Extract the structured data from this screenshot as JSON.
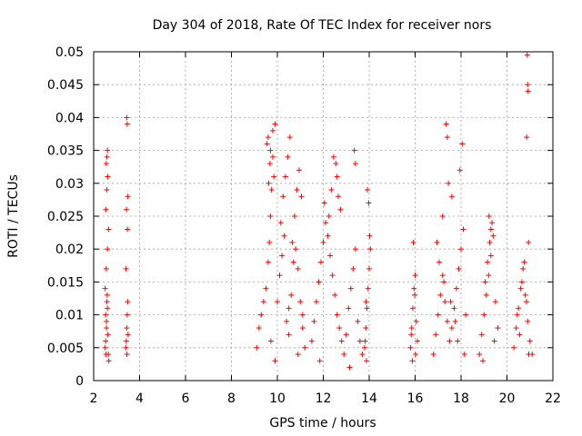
{
  "chart_data": {
    "type": "scatter",
    "title": "Day 304 of 2018, Rate Of TEC Index for receiver nors",
    "xlabel": "GPS time / hours",
    "ylabel": "ROTI / TECUs",
    "xlim": [
      2,
      22
    ],
    "ylim": [
      0,
      0.05
    ],
    "grid": true,
    "marker": "plus",
    "color": "#ff0000",
    "x_ticks": [
      2,
      4,
      6,
      8,
      10,
      12,
      14,
      16,
      18,
      20,
      22
    ],
    "x_tick_labels": [
      "2",
      "4",
      "6",
      "8",
      "10",
      "12",
      "14",
      "16",
      "18",
      "20",
      "22"
    ],
    "y_ticks": [
      0,
      0.005,
      0.01,
      0.015,
      0.02,
      0.025,
      0.03,
      0.035,
      0.04,
      0.045,
      0.05
    ],
    "y_tick_labels": [
      "0",
      "0.005",
      "0.01",
      "0.015",
      "0.02",
      "0.025",
      "0.03",
      "0.035",
      "0.04",
      "0.045",
      "0.05"
    ],
    "series": [
      {
        "name": "ROTI",
        "x": [
          2.5,
          2.52,
          2.54,
          2.56,
          2.58,
          2.6,
          2.62,
          2.64,
          2.66,
          2.5,
          2.55,
          2.6,
          2.65,
          2.53,
          2.57,
          2.61,
          2.55,
          2.58,
          2.6,
          2.52,
          2.56,
          2.59,
          3.4,
          3.42,
          3.44,
          3.46,
          3.48,
          3.5,
          3.45,
          3.41,
          3.47,
          3.43,
          3.49,
          3.44,
          3.46,
          9.1,
          9.2,
          9.3,
          9.4,
          9.5,
          9.6,
          9.65,
          9.7,
          9.75,
          9.8,
          9.85,
          9.9,
          10.0,
          10.1,
          10.2,
          10.3,
          10.4,
          10.5,
          10.6,
          10.7,
          10.8,
          10.9,
          11.0,
          11.1,
          11.2,
          9.55,
          9.6,
          9.7,
          9.8,
          9.62,
          9.68,
          10.15,
          10.25,
          10.35,
          10.45,
          10.55,
          10.65,
          10.75,
          10.85,
          10.95,
          11.05,
          9.72,
          9.9,
          10.9,
          11.1,
          10.5,
          11.5,
          11.6,
          11.7,
          11.8,
          11.9,
          12.0,
          12.1,
          12.2,
          12.3,
          12.4,
          12.5,
          12.6,
          12.7,
          12.8,
          12.9,
          13.0,
          13.1,
          13.2,
          13.3,
          13.4,
          13.5,
          13.6,
          13.7,
          12.45,
          12.55,
          12.6,
          13.35,
          13.4,
          12.05,
          12.25,
          12.65,
          11.85,
          13.15,
          12.75,
          12.35,
          13.8,
          13.85,
          13.9,
          13.95,
          14.0,
          14.05,
          13.88,
          13.92,
          13.98,
          14.02,
          13.86,
          13.82,
          15.8,
          15.85,
          15.9,
          15.95,
          16.0,
          16.05,
          16.1,
          15.88,
          15.92,
          15.98,
          16.02,
          15.83,
          16.8,
          16.9,
          17.0,
          17.1,
          17.2,
          17.3,
          17.4,
          17.5,
          17.6,
          17.7,
          17.8,
          17.9,
          18.0,
          18.1,
          18.2,
          17.35,
          17.4,
          17.45,
          17.2,
          17.6,
          18.05,
          17.95,
          17.05,
          17.25,
          17.55,
          17.75,
          17.85,
          18.15,
          16.95,
          18.8,
          18.9,
          19.0,
          19.1,
          19.2,
          19.3,
          19.4,
          19.5,
          19.6,
          19.05,
          19.15,
          19.25,
          19.35,
          19.45,
          18.95,
          19.22,
          19.3,
          20.3,
          20.4,
          20.5,
          20.6,
          20.7,
          20.8,
          20.9,
          21.0,
          21.1,
          20.45,
          20.55,
          20.65,
          20.75,
          20.85,
          20.95,
          20.88,
          20.9,
          20.92,
          20.86,
          20.94
        ],
        "y": [
          0.005,
          0.006,
          0.004,
          0.008,
          0.012,
          0.011,
          0.007,
          0.004,
          0.003,
          0.014,
          0.017,
          0.02,
          0.023,
          0.026,
          0.029,
          0.031,
          0.033,
          0.034,
          0.035,
          0.01,
          0.009,
          0.013,
          0.005,
          0.006,
          0.008,
          0.01,
          0.012,
          0.007,
          0.004,
          0.017,
          0.023,
          0.026,
          0.028,
          0.04,
          0.039,
          0.005,
          0.008,
          0.01,
          0.012,
          0.014,
          0.018,
          0.021,
          0.025,
          0.029,
          0.034,
          0.031,
          0.039,
          0.012,
          0.016,
          0.019,
          0.022,
          0.009,
          0.007,
          0.013,
          0.018,
          0.02,
          0.017,
          0.012,
          0.008,
          0.005,
          0.036,
          0.037,
          0.035,
          0.038,
          0.03,
          0.033,
          0.024,
          0.028,
          0.031,
          0.034,
          0.037,
          0.021,
          0.025,
          0.029,
          0.032,
          0.028,
          0.006,
          0.003,
          0.004,
          0.01,
          0.011,
          0.006,
          0.009,
          0.012,
          0.015,
          0.018,
          0.021,
          0.024,
          0.022,
          0.019,
          0.016,
          0.013,
          0.01,
          0.008,
          0.006,
          0.004,
          0.007,
          0.011,
          0.014,
          0.017,
          0.02,
          0.009,
          0.006,
          0.004,
          0.034,
          0.033,
          0.031,
          0.035,
          0.033,
          0.027,
          0.025,
          0.028,
          0.003,
          0.002,
          0.026,
          0.029,
          0.005,
          0.008,
          0.011,
          0.014,
          0.017,
          0.02,
          0.003,
          0.029,
          0.027,
          0.022,
          0.012,
          0.006,
          0.005,
          0.008,
          0.011,
          0.014,
          0.016,
          0.009,
          0.006,
          0.003,
          0.021,
          0.013,
          0.004,
          0.007,
          0.004,
          0.007,
          0.01,
          0.013,
          0.016,
          0.012,
          0.009,
          0.006,
          0.008,
          0.011,
          0.014,
          0.017,
          0.02,
          0.023,
          0.01,
          0.039,
          0.037,
          0.03,
          0.025,
          0.028,
          0.036,
          0.032,
          0.018,
          0.015,
          0.012,
          0.009,
          0.006,
          0.004,
          0.021,
          0.004,
          0.007,
          0.01,
          0.013,
          0.016,
          0.019,
          0.022,
          0.012,
          0.008,
          0.015,
          0.018,
          0.021,
          0.024,
          0.006,
          0.003,
          0.025,
          0.023,
          0.005,
          0.008,
          0.011,
          0.014,
          0.017,
          0.013,
          0.009,
          0.006,
          0.004,
          0.01,
          0.007,
          0.015,
          0.018,
          0.012,
          0.004,
          0.0495,
          0.045,
          0.044,
          0.037,
          0.021
        ]
      }
    ]
  }
}
